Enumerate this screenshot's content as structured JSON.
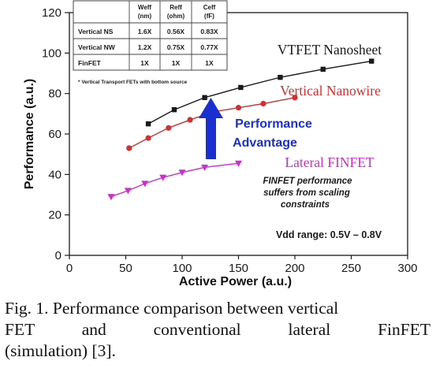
{
  "chart_data": {
    "type": "line",
    "xlabel": "Active Power (a.u.)",
    "ylabel": "Performance (a.u.)",
    "xlim": [
      0,
      300
    ],
    "ylim": [
      0,
      120
    ],
    "x_ticks": [
      "0",
      "50",
      "100",
      "150",
      "200",
      "250",
      "300"
    ],
    "y_ticks": [
      "0",
      "20",
      "40",
      "60",
      "80",
      "100",
      "120"
    ],
    "grid": false,
    "series": [
      {
        "name": "VTFET Nanosheet",
        "color": "#1a1a1a",
        "marker": "square",
        "x": [
          70,
          93,
          120,
          152,
          187,
          225,
          268
        ],
        "y": [
          65,
          72,
          78,
          83,
          88,
          92,
          96
        ]
      },
      {
        "name": "Vertical Nanowire",
        "color": "#d03030",
        "marker": "circle",
        "x": [
          53,
          70,
          88,
          107,
          128,
          150,
          172,
          200
        ],
        "y": [
          53,
          58,
          63,
          67,
          71,
          73,
          75,
          78
        ]
      },
      {
        "name": "Lateral FINFET",
        "color": "#cc2fcc",
        "marker": "triangle-down",
        "x": [
          37,
          52,
          67,
          83,
          100,
          120,
          150
        ],
        "y": [
          29,
          32,
          35.5,
          38.5,
          41,
          43.5,
          45.5
        ]
      }
    ],
    "annotations": {
      "arrow_label_1": "Performance",
      "arrow_label_2": "Advantage",
      "finfet_note_1": "FINFET performance",
      "finfet_note_2": "suffers from scaling",
      "finfet_note_3": "constraints",
      "vdd_range": "Vdd range:  0.5V – 0.8V",
      "table_footnote": "* Vertical Transport FETs with bottom source"
    },
    "table": {
      "headers": [
        "",
        "Weff (nm)",
        "Reff (ohm)",
        "Ceff (fF)"
      ],
      "header_lines": [
        [
          "",
          ""
        ],
        [
          "Weff",
          "(nm)"
        ],
        [
          "Reff",
          "(ohm)"
        ],
        [
          "Ceff",
          "(fF)"
        ]
      ],
      "rows": [
        [
          "Vertical NS",
          "1.6X",
          "0.56X",
          "0.83X"
        ],
        [
          "Vertical NW",
          "1.2X",
          "0.75X",
          "0.77X"
        ],
        [
          "FinFET",
          "1X",
          "1X",
          "1X"
        ]
      ]
    }
  },
  "caption": {
    "line1": "Fig. 1. Performance comparison between vertical",
    "line2": "FET and conventional lateral FinFET",
    "line3": "(simulation) [3]."
  }
}
